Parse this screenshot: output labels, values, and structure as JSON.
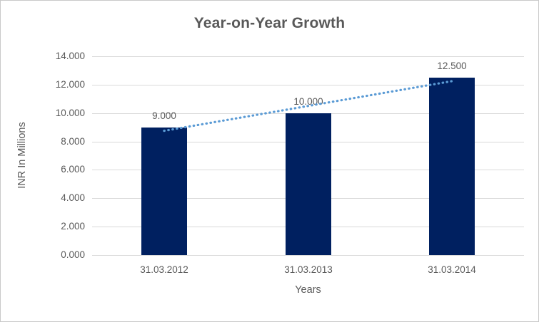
{
  "chart_data": {
    "type": "bar",
    "title": "Year-on-Year Growth",
    "categories": [
      "31.03.2012",
      "31.03.2013",
      "31.03.2014"
    ],
    "values": [
      9.0,
      10.0,
      12.5
    ],
    "data_labels": [
      "9.000",
      "10.000",
      "12.500"
    ],
    "xlabel": "Years",
    "ylabel": "INR In Millions",
    "ylim": [
      0,
      14
    ],
    "ytick_values": [
      0,
      2,
      4,
      6,
      8,
      10,
      12,
      14
    ],
    "ytick_labels": [
      "0.000",
      "2.000",
      "4.000",
      "6.000",
      "8.000",
      "10.000",
      "12.000",
      "14.000"
    ],
    "grid": true,
    "legend": "none",
    "trendline": {
      "type": "linear",
      "style": "dotted",
      "fit_values": [
        8.75,
        10.5,
        12.25
      ]
    },
    "colors": {
      "bar": "#002060",
      "trendline": "#5b9bd5",
      "grid": "#d9d9d9",
      "text": "#595959",
      "title": "#595959",
      "border": "#c9c9c9",
      "background": "#ffffff"
    }
  }
}
